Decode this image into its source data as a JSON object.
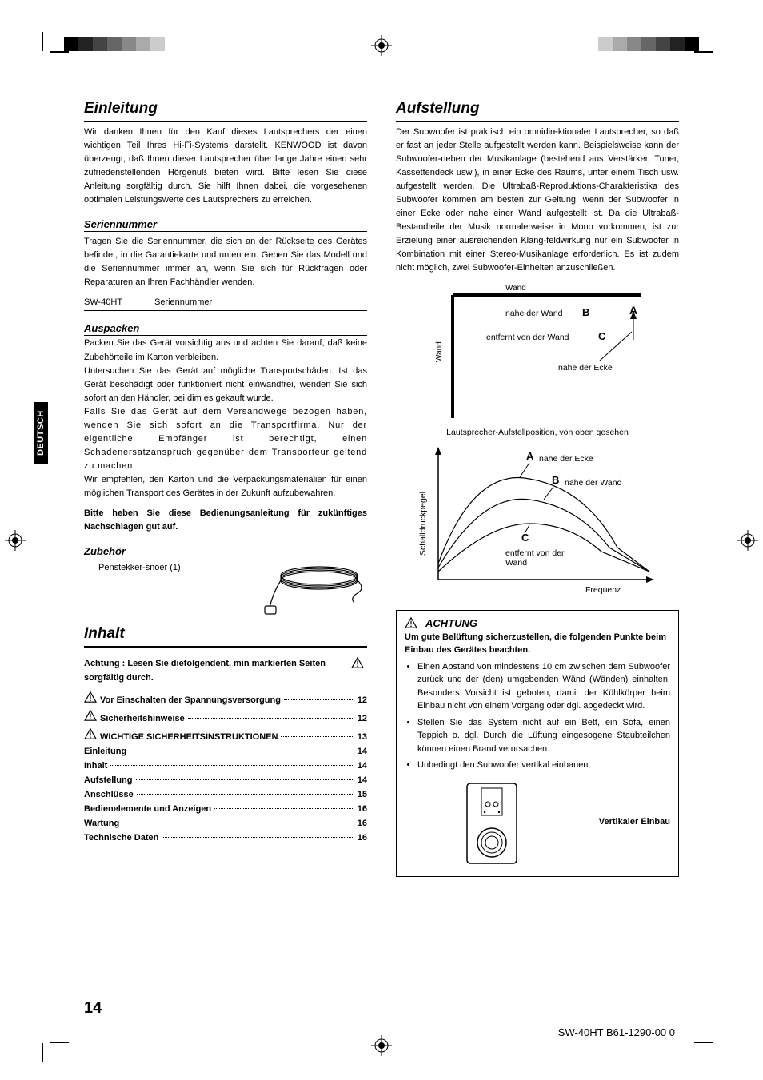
{
  "language_tab": "DEUTSCH",
  "page_number": "14",
  "footer_code": "SW-40HT  B61-1290-00 0",
  "left": {
    "h_einleitung": "Einleitung",
    "p_einleitung": "Wir danken Ihnen für den Kauf dieses Lautsprechers der einen wichtigen Teil Ihres Hi-Fi-Systems darstellt. KENWOOD ist davon überzeugt, daß Ihnen dieser Lautsprecher über lange Jahre einen sehr zufriedenstellenden Hörgenuß bieten wird. Bitte lesen Sie diese Anleitung sorgfältig durch. Sie hilft Ihnen dabei, die vorgesehenen optimalen Leistungswerte des Lautsprechers zu erreichen.",
    "h_serien": "Seriennummer",
    "p_serien": "Tragen Sie die Seriennummer, die sich an der Rückseite des Gerätes befindet, in die Garantiekarte und unten ein.  Geben Sie das Modell und die Seriennummer immer an, wenn Sie sich für Rückfragen oder Reparaturen an Ihren Fachhändler wenden.",
    "serial_model": "SW-40HT",
    "serial_label": "Seriennummer",
    "h_auspacken": "Auspacken",
    "p_auspacken1": "Packen Sie das Gerät vorsichtig aus und achten Sie darauf, daß keine Zubehörteile im Karton verbleiben.",
    "p_auspacken2": "Untersuchen Sie das Gerät auf mögliche Transportschäden.  Ist das Gerät beschädigt oder funktioniert nicht einwandfrei, wenden Sie sich sofort an den Händler, bei dim es gekauft wurde.",
    "p_auspacken3": "Falls Sie das Gerät auf dem Versandwege bezogen haben, wenden Sie sich sofort an die Transportfirma.  Nur der eigentliche Empfänger ist berechtigt, einen Schadenersatzanspruch gegenüber dem Transporteur geltend zu machen.",
    "p_auspacken4": "Wir empfehlen, den Karton und die Verpackungsmaterialien für einen möglichen Transport des Gerätes in der Zukunft aufzubewahren.",
    "p_auspacken_bold": "Bitte heben Sie diese Bedienungsanleitung für zukünftiges Nachschlagen gut auf.",
    "h_zubehoer": "Zubehör",
    "accessory_label": "Penstekker-snoer (1)",
    "h_inhalt": "Inhalt",
    "toc_head": "Achtung : Lesen Sie diefolgendent, min markierten Seiten sorgfältig durch.",
    "toc": [
      {
        "warn": true,
        "label": "Vor Einschalten der Spannungsversorgung",
        "page": "12"
      },
      {
        "warn": true,
        "label": "Sicherheitshinweise",
        "page": "12"
      },
      {
        "warn": true,
        "label": "WICHTIGE SICHERHEITSINSTRUKTIONEN",
        "page": "13"
      },
      {
        "warn": false,
        "label": "Einleitung",
        "page": "14"
      },
      {
        "warn": false,
        "label": "Inhalt",
        "page": "14"
      },
      {
        "warn": false,
        "label": "Aufstellung",
        "page": "14"
      },
      {
        "warn": false,
        "label": "Anschlüsse",
        "page": "15"
      },
      {
        "warn": false,
        "label": "Bedienelemente und Anzeigen",
        "page": "16"
      },
      {
        "warn": false,
        "label": "Wartung",
        "page": "16"
      },
      {
        "warn": false,
        "label": "Technische Daten",
        "page": "16"
      }
    ]
  },
  "right": {
    "h_aufstellung": "Aufstellung",
    "p_aufstellung": "Der Subwoofer ist praktisch ein omnidirektionaler Lautsprecher, so daß er fast an jeder Stelle aufgestellt werden kann. Beispielsweise kann der Subwoofer-neben der Musikanlage (bestehend aus Verstärker, Tuner, Kassettendeck usw.), in einer Ecke des Raums, unter einem Tisch usw. aufgestellt werden. Die Ultrabaß-Reproduktions-Charakteristika des Subwoofer kommen am besten zur Geltung, wenn der Subwoofer in einer Ecke oder nahe einer Wand aufgestellt ist. Da die Ultrabaß-Bestandteile der Musik normalerweise in Mono vorkommen, ist zur Erzielung einer ausreichenden Klang-feldwirkung nur ein Subwoofer in Kombination mit einer Stereo-Musikanlage erforderlich. Es ist zudem nicht möglich, zwei Subwoofer-Einheiten anzuschließen.",
    "room": {
      "wand_top": "Wand",
      "wand_left": "Wand",
      "nahe_wand": "nahe der Wand",
      "B": "B",
      "A": "A",
      "entfernt_wand": "entfernt von der Wand",
      "C": "C",
      "nahe_ecke": "nahe der Ecke",
      "caption": "Lautsprecher-Aufstellposition, von oben gesehen"
    },
    "curve": {
      "y_axis": "Schalldruckpegel",
      "x_axis": "Frequenz",
      "A": "A",
      "A_label": "nahe der Ecke",
      "B": "B",
      "B_label": "nahe der Wand",
      "C": "C",
      "C_label": "entfernt von der Wand"
    },
    "achtung": {
      "title": "ACHTUNG",
      "lead": "Um gute Belüftung sicherzustellen, die folgenden Punkte beim Einbau des Gerätes beachten.",
      "items": [
        "Einen Abstand von mindestens 10 cm zwischen dem Subwoofer zurück und der (den) umgebenden Wänd (Wänden) einhalten. Besonders Vorsicht ist geboten, damit der Kühlkörper beim Einbau nicht von einem Vorgang oder dgl. abgedeckt wird.",
        "Stellen Sie das System nicht auf ein Bett, ein Sofa, einen Teppich o. dgl. Durch die Lüftung eingesogene Staubteilchen können einen Brand verursachen.",
        "Unbedingt den Subwoofer vertikal einbauen."
      ],
      "vertical_label": "Vertikaler Einbau"
    }
  },
  "colors": {
    "text": "#000000",
    "bg": "#ffffff",
    "rule": "#000000"
  }
}
